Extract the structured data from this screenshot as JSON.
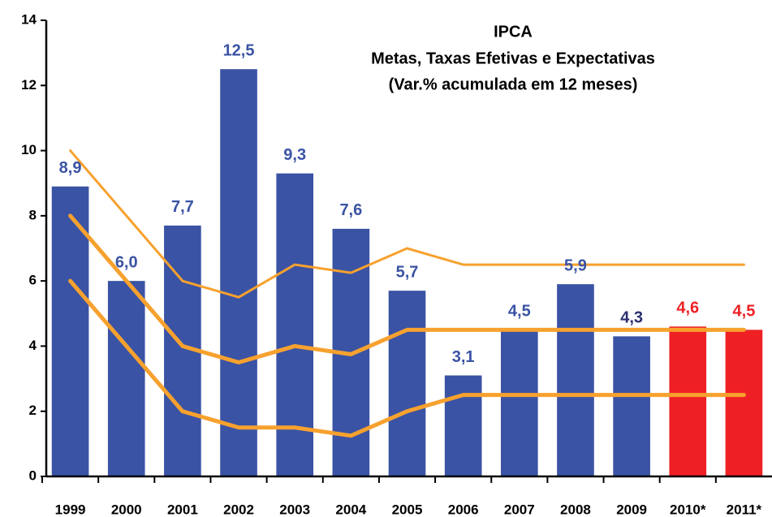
{
  "chart_data": {
    "type": "bar",
    "title": [
      "IPCA",
      "Metas, Taxas Efetivas e Expectativas",
      "(Var.% acumulada em 12 meses)"
    ],
    "categories": [
      "1999",
      "2000",
      "2001",
      "2002",
      "2003",
      "2004",
      "2005",
      "2006",
      "2007",
      "2008",
      "2009",
      "2010*",
      "2011*"
    ],
    "values": [
      8.9,
      6.0,
      7.7,
      12.5,
      9.3,
      7.6,
      5.7,
      3.1,
      4.5,
      5.9,
      4.3,
      4.6,
      4.5
    ],
    "value_labels": [
      "8,9",
      "6,0",
      "7,7",
      "12,5",
      "9,3",
      "7,6",
      "5,7",
      "3,1",
      "4,5",
      "5,9",
      "4,3",
      "4,6",
      "4,5"
    ],
    "colors": [
      "#3a53a4",
      "#3a53a4",
      "#3a53a4",
      "#3a53a4",
      "#3a53a4",
      "#3a53a4",
      "#3a53a4",
      "#3a53a4",
      "#3a53a4",
      "#3a53a4",
      "#3a53a4",
      "#ee2024",
      "#ee2024"
    ],
    "label_colors": [
      "#3a53a4",
      "#3a53a4",
      "#3a53a4",
      "#3a53a4",
      "#3a53a4",
      "#3a53a4",
      "#3a53a4",
      "#3a53a4",
      "#3a53a4",
      "#3a53a4",
      "#2b2f6e",
      "#ee2024",
      "#ee2024"
    ],
    "series": [
      {
        "color": "#f7a12e",
        "values": [
          10,
          8,
          6,
          5.5,
          6.5,
          6.25,
          7,
          6.5,
          6.5,
          6.5,
          6.5,
          6.5,
          6.5
        ]
      },
      {
        "color": "#f7a12e",
        "values": [
          8,
          6,
          4,
          3.5,
          4,
          3.75,
          4.5,
          4.5,
          4.5,
          4.5,
          4.5,
          4.5,
          4.5
        ]
      },
      {
        "color": "#f7a12e",
        "values": [
          6,
          4,
          2,
          1.5,
          1.5,
          1.25,
          2,
          2.5,
          2.5,
          2.5,
          2.5,
          2.5,
          2.5
        ]
      }
    ],
    "ylim": [
      0,
      14
    ],
    "yticks": [
      0,
      2,
      4,
      6,
      8,
      10,
      12,
      14
    ]
  }
}
